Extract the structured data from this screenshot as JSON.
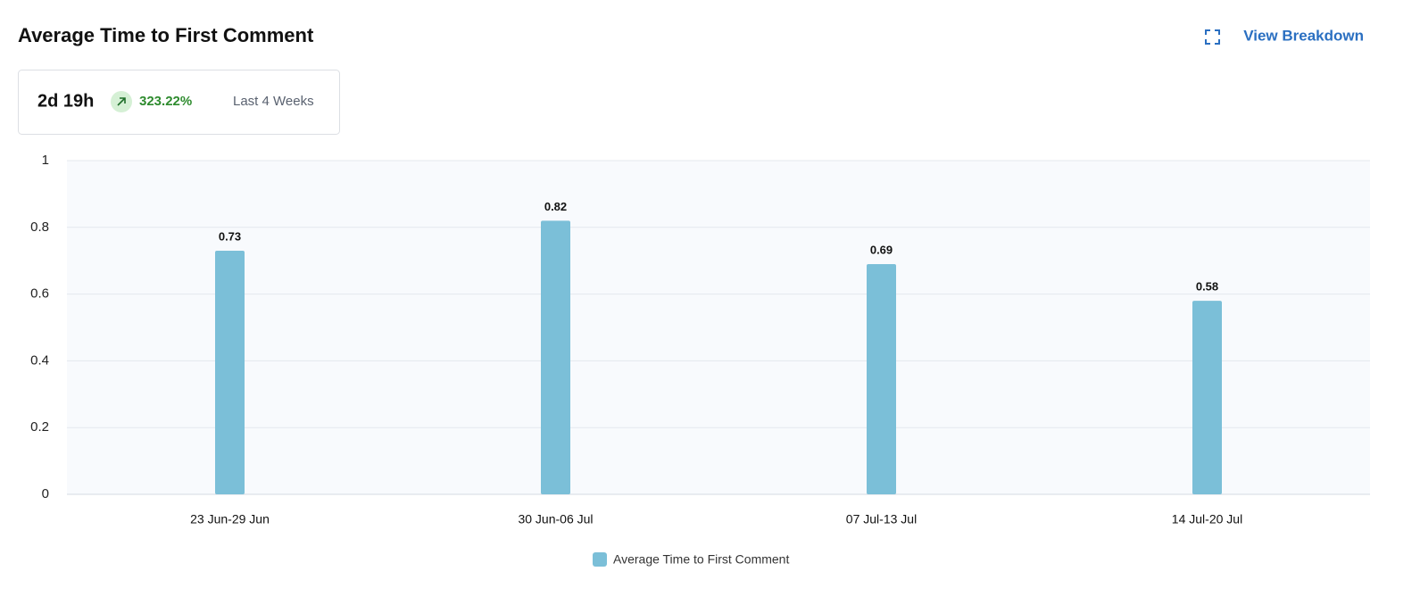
{
  "header": {
    "title": "Average Time to First Comment",
    "action": "View Breakdown"
  },
  "summary": {
    "value": "2d 19h",
    "change": "323.22%",
    "period": "Last 4 Weeks"
  },
  "chart_data": {
    "type": "bar",
    "categories": [
      "23 Jun-29 Jun",
      "30 Jun-06 Jul",
      "07 Jul-13 Jul",
      "14 Jul-20 Jul"
    ],
    "series": [
      {
        "name": "Average Time to First Comment",
        "color": "#7bbfd8",
        "values": [
          0.73,
          0.82,
          0.69,
          0.58
        ]
      }
    ],
    "ylim": [
      0,
      1
    ],
    "yticks": [
      0,
      0.2,
      0.4,
      0.6,
      0.8,
      1
    ],
    "grid": true,
    "legend": "bottom"
  }
}
